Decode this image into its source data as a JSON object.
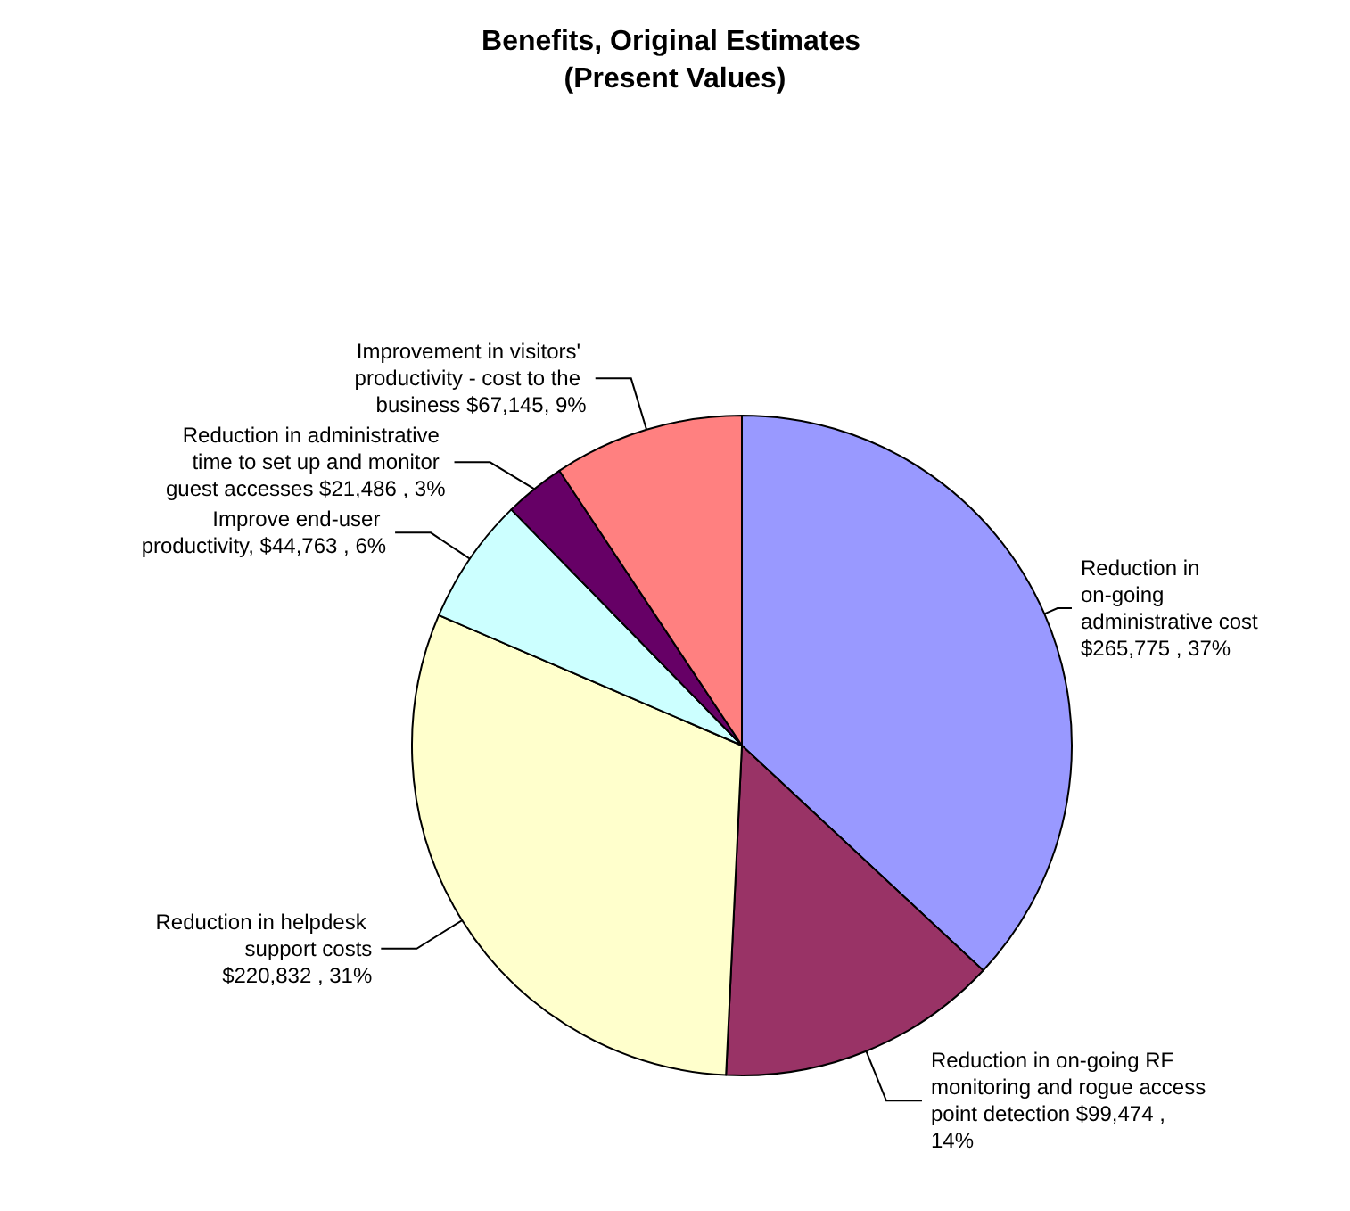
{
  "chart_data": {
    "type": "pie",
    "title": "Benefits, Original Estimates (Present Values)",
    "categories": [
      "Reduction in on-going administrative cost",
      "Reduction in on-going RF monitoring and rogue access point detection",
      "Reduction in helpdesk support costs",
      "Improve end-user productivity",
      "Reduction in administrative time to set up and monitor guest accesses",
      "Improvement in visitors' productivity - cost to the business"
    ],
    "values": [
      265775,
      99474,
      220832,
      44763,
      21486,
      67145
    ],
    "value_labels": [
      "$265,775 , 37%",
      "$99,474 , 14%",
      "$220,832 , 31%",
      "$44,763 , 6%",
      "$21,486 , 3%",
      "$67,145, 9%"
    ],
    "colors": [
      "#9999ff",
      "#993366",
      "#ffffcc",
      "#ccffff",
      "#660066",
      "#ff8080"
    ],
    "legend": false
  }
}
